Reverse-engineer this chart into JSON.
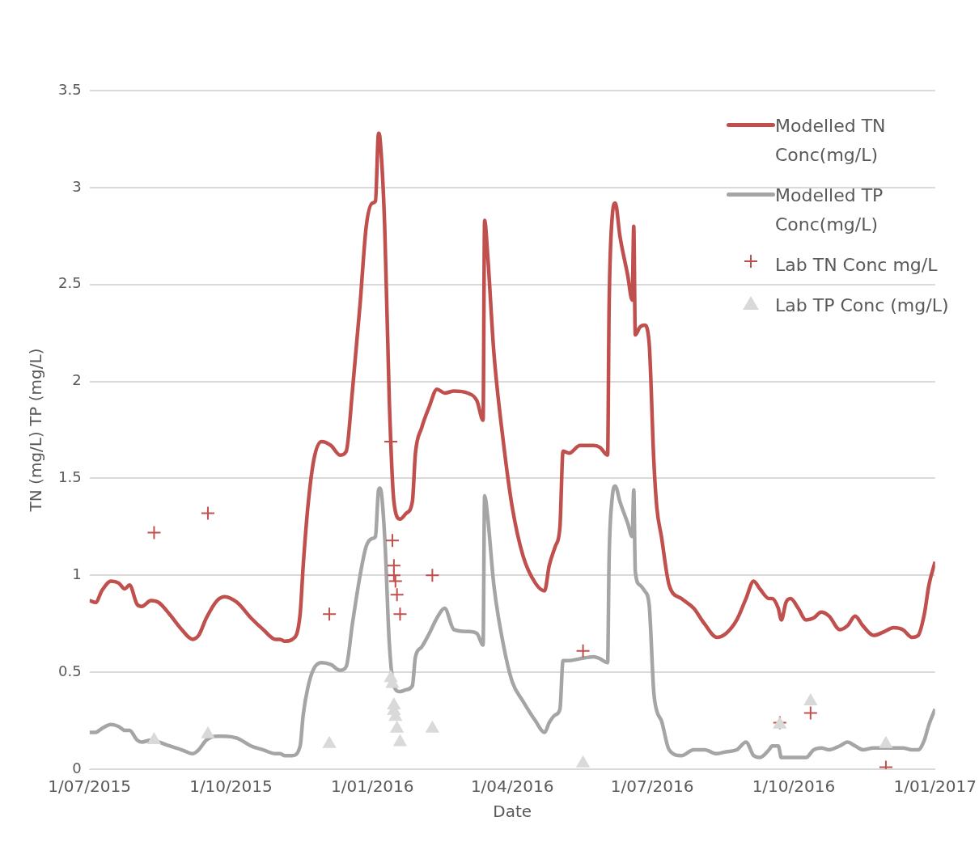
{
  "chart_data": {
    "type": "line",
    "xlabel": "Date",
    "ylabel": "TN (mg/L) TP (mg/L)",
    "x": [
      "2015-07-01",
      "2015-07-05",
      "2015-07-09",
      "2015-07-15",
      "2015-07-20",
      "2015-07-24",
      "2015-07-27",
      "2015-08-01",
      "2015-08-04",
      "2015-08-10",
      "2015-08-15",
      "2015-08-22",
      "2015-08-30",
      "2015-09-06",
      "2015-09-10",
      "2015-09-15",
      "2015-09-22",
      "2015-09-27",
      "2015-10-05",
      "2015-10-14",
      "2015-10-22",
      "2015-10-30",
      "2015-11-02",
      "2015-11-05",
      "2015-11-10",
      "2015-11-15",
      "2015-11-17",
      "2015-11-20",
      "2015-11-24",
      "2015-11-29",
      "2015-12-05",
      "2015-12-11",
      "2015-12-15",
      "2015-12-19",
      "2015-12-24",
      "2015-12-28",
      "2016-01-01",
      "2016-01-03",
      "2016-01-05",
      "2016-01-06",
      "2016-01-09",
      "2016-01-12",
      "2016-01-15",
      "2016-01-19",
      "2016-01-23",
      "2016-01-27",
      "2016-01-29",
      "2016-02-02",
      "2016-02-07",
      "2016-02-12",
      "2016-02-17",
      "2016-02-23",
      "2016-03-03",
      "2016-03-09",
      "2016-03-13",
      "2016-03-14",
      "2016-03-16",
      "2016-03-20",
      "2016-03-26",
      "2016-04-01",
      "2016-04-08",
      "2016-04-16",
      "2016-04-22",
      "2016-04-25",
      "2016-04-29",
      "2016-05-02",
      "2016-05-04",
      "2016-05-08",
      "2016-05-15",
      "2016-05-24",
      "2016-05-28",
      "2016-06-02",
      "2016-06-03",
      "2016-06-05",
      "2016-06-07",
      "2016-06-10",
      "2016-06-15",
      "2016-06-18",
      "2016-06-19",
      "2016-06-20",
      "2016-06-23",
      "2016-06-26",
      "2016-06-29",
      "2016-07-02",
      "2016-07-04",
      "2016-07-07",
      "2016-07-12",
      "2016-07-20",
      "2016-07-28",
      "2016-08-04",
      "2016-08-12",
      "2016-08-18",
      "2016-08-25",
      "2016-08-31",
      "2016-09-05",
      "2016-09-09",
      "2016-09-15",
      "2016-09-17",
      "2016-09-21",
      "2016-09-23",
      "2016-09-26",
      "2016-09-29",
      "2016-10-04",
      "2016-10-09",
      "2016-10-14",
      "2016-10-19",
      "2016-10-24",
      "2016-10-31",
      "2016-11-05",
      "2016-11-10",
      "2016-11-15",
      "2016-11-22",
      "2016-11-29",
      "2016-12-05",
      "2016-12-11",
      "2016-12-17",
      "2016-12-21",
      "2016-12-25",
      "2016-12-28",
      "2017-01-01"
    ],
    "series": [
      {
        "name": "Modelled TN Conc(mg/L)",
        "color": "#c0504d",
        "marker": "none",
        "values": [
          0.87,
          0.86,
          0.92,
          0.97,
          0.96,
          0.93,
          0.95,
          0.85,
          0.84,
          0.87,
          0.86,
          0.8,
          0.72,
          0.67,
          0.69,
          0.78,
          0.87,
          0.89,
          0.86,
          0.78,
          0.72,
          0.67,
          0.67,
          0.66,
          0.67,
          0.8,
          1.05,
          1.35,
          1.6,
          1.69,
          1.67,
          1.62,
          1.64,
          1.95,
          2.4,
          2.8,
          2.92,
          2.93,
          3.28,
          3.25,
          2.8,
          1.9,
          1.38,
          1.29,
          1.32,
          1.38,
          1.63,
          1.76,
          1.87,
          1.96,
          1.94,
          1.95,
          1.94,
          1.9,
          1.8,
          2.83,
          2.65,
          2.15,
          1.7,
          1.35,
          1.1,
          0.96,
          0.92,
          1.05,
          1.15,
          1.25,
          1.64,
          1.63,
          1.67,
          1.67,
          1.66,
          1.62,
          2.4,
          2.85,
          2.92,
          2.75,
          2.55,
          2.42,
          2.8,
          2.24,
          2.28,
          2.29,
          2.2,
          1.6,
          1.35,
          1.2,
          0.95,
          0.88,
          0.83,
          0.75,
          0.68,
          0.7,
          0.77,
          0.88,
          0.97,
          0.93,
          0.88,
          0.88,
          0.83,
          0.77,
          0.86,
          0.88,
          0.83,
          0.77,
          0.78,
          0.81,
          0.79,
          0.72,
          0.74,
          0.79,
          0.74,
          0.69,
          0.71,
          0.73,
          0.72,
          0.68,
          0.69,
          0.8,
          0.95,
          1.07
        ]
      },
      {
        "name": "Modelled TP Conc(mg/L)",
        "color": "#a5a5a5",
        "marker": "none",
        "values": [
          0.19,
          0.19,
          0.21,
          0.23,
          0.22,
          0.2,
          0.2,
          0.15,
          0.14,
          0.15,
          0.14,
          0.12,
          0.1,
          0.08,
          0.1,
          0.15,
          0.17,
          0.17,
          0.16,
          0.12,
          0.1,
          0.08,
          0.08,
          0.07,
          0.07,
          0.12,
          0.28,
          0.42,
          0.52,
          0.55,
          0.54,
          0.51,
          0.53,
          0.75,
          1.0,
          1.15,
          1.19,
          1.2,
          1.44,
          1.45,
          1.2,
          0.65,
          0.43,
          0.4,
          0.41,
          0.43,
          0.58,
          0.63,
          0.7,
          0.78,
          0.83,
          0.72,
          0.71,
          0.7,
          0.64,
          1.41,
          1.3,
          0.95,
          0.65,
          0.45,
          0.35,
          0.25,
          0.19,
          0.24,
          0.28,
          0.31,
          0.56,
          0.56,
          0.57,
          0.58,
          0.57,
          0.55,
          1.1,
          1.4,
          1.46,
          1.38,
          1.27,
          1.2,
          1.44,
          1.02,
          0.95,
          0.92,
          0.85,
          0.4,
          0.3,
          0.25,
          0.1,
          0.07,
          0.1,
          0.1,
          0.08,
          0.09,
          0.1,
          0.14,
          0.07,
          0.06,
          0.1,
          0.12,
          0.12,
          0.06,
          0.06,
          0.06,
          0.06,
          0.06,
          0.1,
          0.11,
          0.1,
          0.12,
          0.14,
          0.12,
          0.1,
          0.11,
          0.11,
          0.11,
          0.11,
          0.1,
          0.1,
          0.15,
          0.23,
          0.31
        ]
      },
      {
        "name": "Lab TN Conc mg/L",
        "type": "scatter",
        "color": "#c0504d",
        "marker": "cross",
        "x": [
          "2015-08-12",
          "2015-09-16",
          "2015-12-04",
          "2016-01-13",
          "2016-01-14",
          "2016-01-15",
          "2016-01-15",
          "2016-01-16",
          "2016-01-17",
          "2016-01-19",
          "2016-02-09",
          "2016-05-17",
          "2016-09-22",
          "2016-10-12",
          "2016-11-30"
        ],
        "values": [
          1.22,
          1.32,
          0.8,
          1.69,
          1.18,
          1.05,
          1.0,
          0.97,
          0.9,
          0.8,
          1.0,
          0.61,
          0.24,
          0.29,
          0.01
        ]
      },
      {
        "name": "Lab TP Conc (mg/L)",
        "type": "scatter",
        "color": "#d9d9d9",
        "marker": "triangle",
        "x": [
          "2015-08-12",
          "2015-09-16",
          "2015-12-04",
          "2016-01-13",
          "2016-01-14",
          "2016-01-15",
          "2016-01-15",
          "2016-01-16",
          "2016-01-17",
          "2016-01-19",
          "2016-02-09",
          "2016-05-17",
          "2016-09-22",
          "2016-10-12",
          "2016-11-30"
        ],
        "values": [
          0.15,
          0.18,
          0.13,
          0.47,
          0.44,
          0.33,
          0.3,
          0.27,
          0.21,
          0.14,
          0.21,
          0.03,
          0.23,
          0.35,
          0.13
        ]
      }
    ],
    "xlim": [
      "2015-07-01",
      "2017-01-01"
    ],
    "xticks": [
      {
        "value": "2015-07-01",
        "label": "1/07/2015"
      },
      {
        "value": "2015-10-01",
        "label": "1/10/2015"
      },
      {
        "value": "2016-01-01",
        "label": "1/01/2016"
      },
      {
        "value": "2016-04-01",
        "label": "1/04/2016"
      },
      {
        "value": "2016-07-01",
        "label": "1/07/2016"
      },
      {
        "value": "2016-10-01",
        "label": "1/10/2016"
      },
      {
        "value": "2017-01-01",
        "label": "1/01/2017"
      }
    ],
    "ylim": [
      0,
      3.5
    ],
    "yticks": [
      0,
      0.5,
      1,
      1.5,
      2,
      2.5,
      3,
      3.5
    ],
    "grid": "y",
    "legend": "top right"
  }
}
